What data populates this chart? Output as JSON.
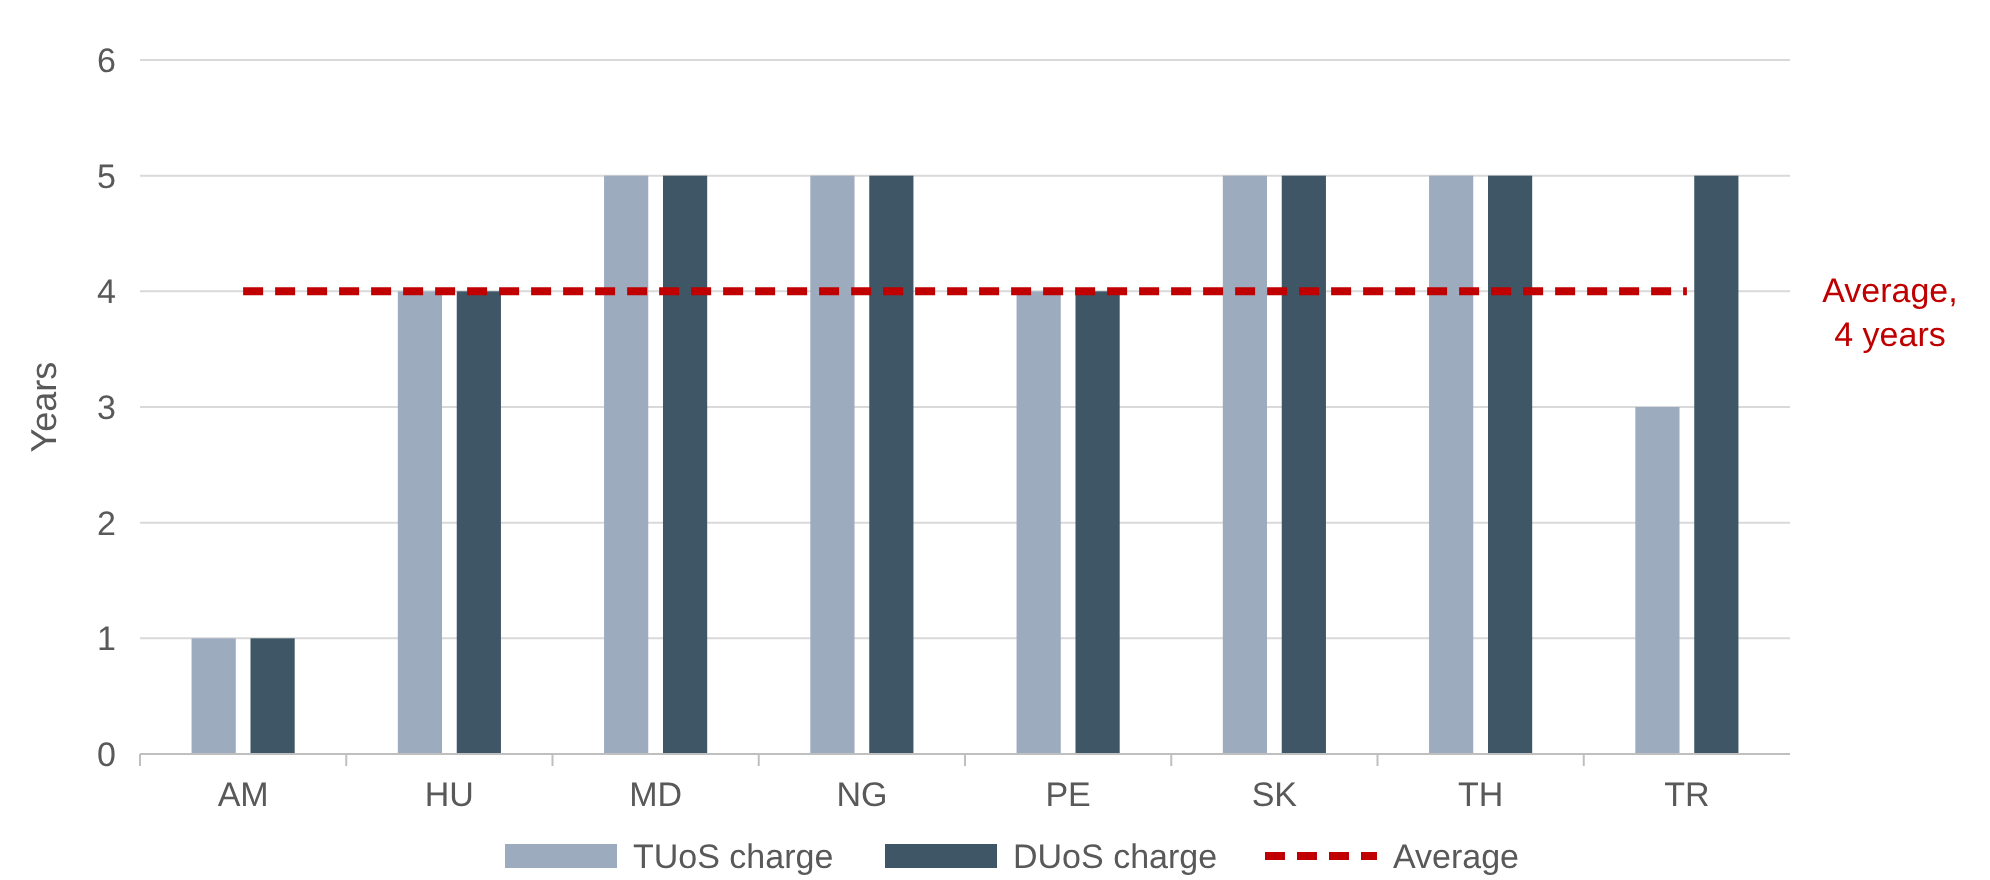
{
  "chart_data": {
    "type": "bar",
    "ylabel": "Years",
    "categories": [
      "AM",
      "HU",
      "MD",
      "NG",
      "PE",
      "SK",
      "TH",
      "TR"
    ],
    "series": [
      {
        "name": "TUoS charge",
        "color": "#9dabbf",
        "values": [
          1,
          4,
          5,
          5,
          4,
          5,
          5,
          3
        ]
      },
      {
        "name": "DUoS charge",
        "color": "#3e5666",
        "values": [
          1,
          4,
          5,
          5,
          4,
          5,
          5,
          5
        ]
      },
      {
        "name": "Average",
        "type": "line",
        "color": "#c00000",
        "line_style": "dashed",
        "values": [
          4,
          4,
          4,
          4,
          4,
          4,
          4,
          4
        ]
      }
    ],
    "ylim": [
      0,
      6
    ],
    "yticks": [
      0,
      1,
      2,
      3,
      4,
      5,
      6
    ],
    "grid": "y",
    "legend": "bottom",
    "annotations": [
      "Average,\n4 years"
    ]
  }
}
